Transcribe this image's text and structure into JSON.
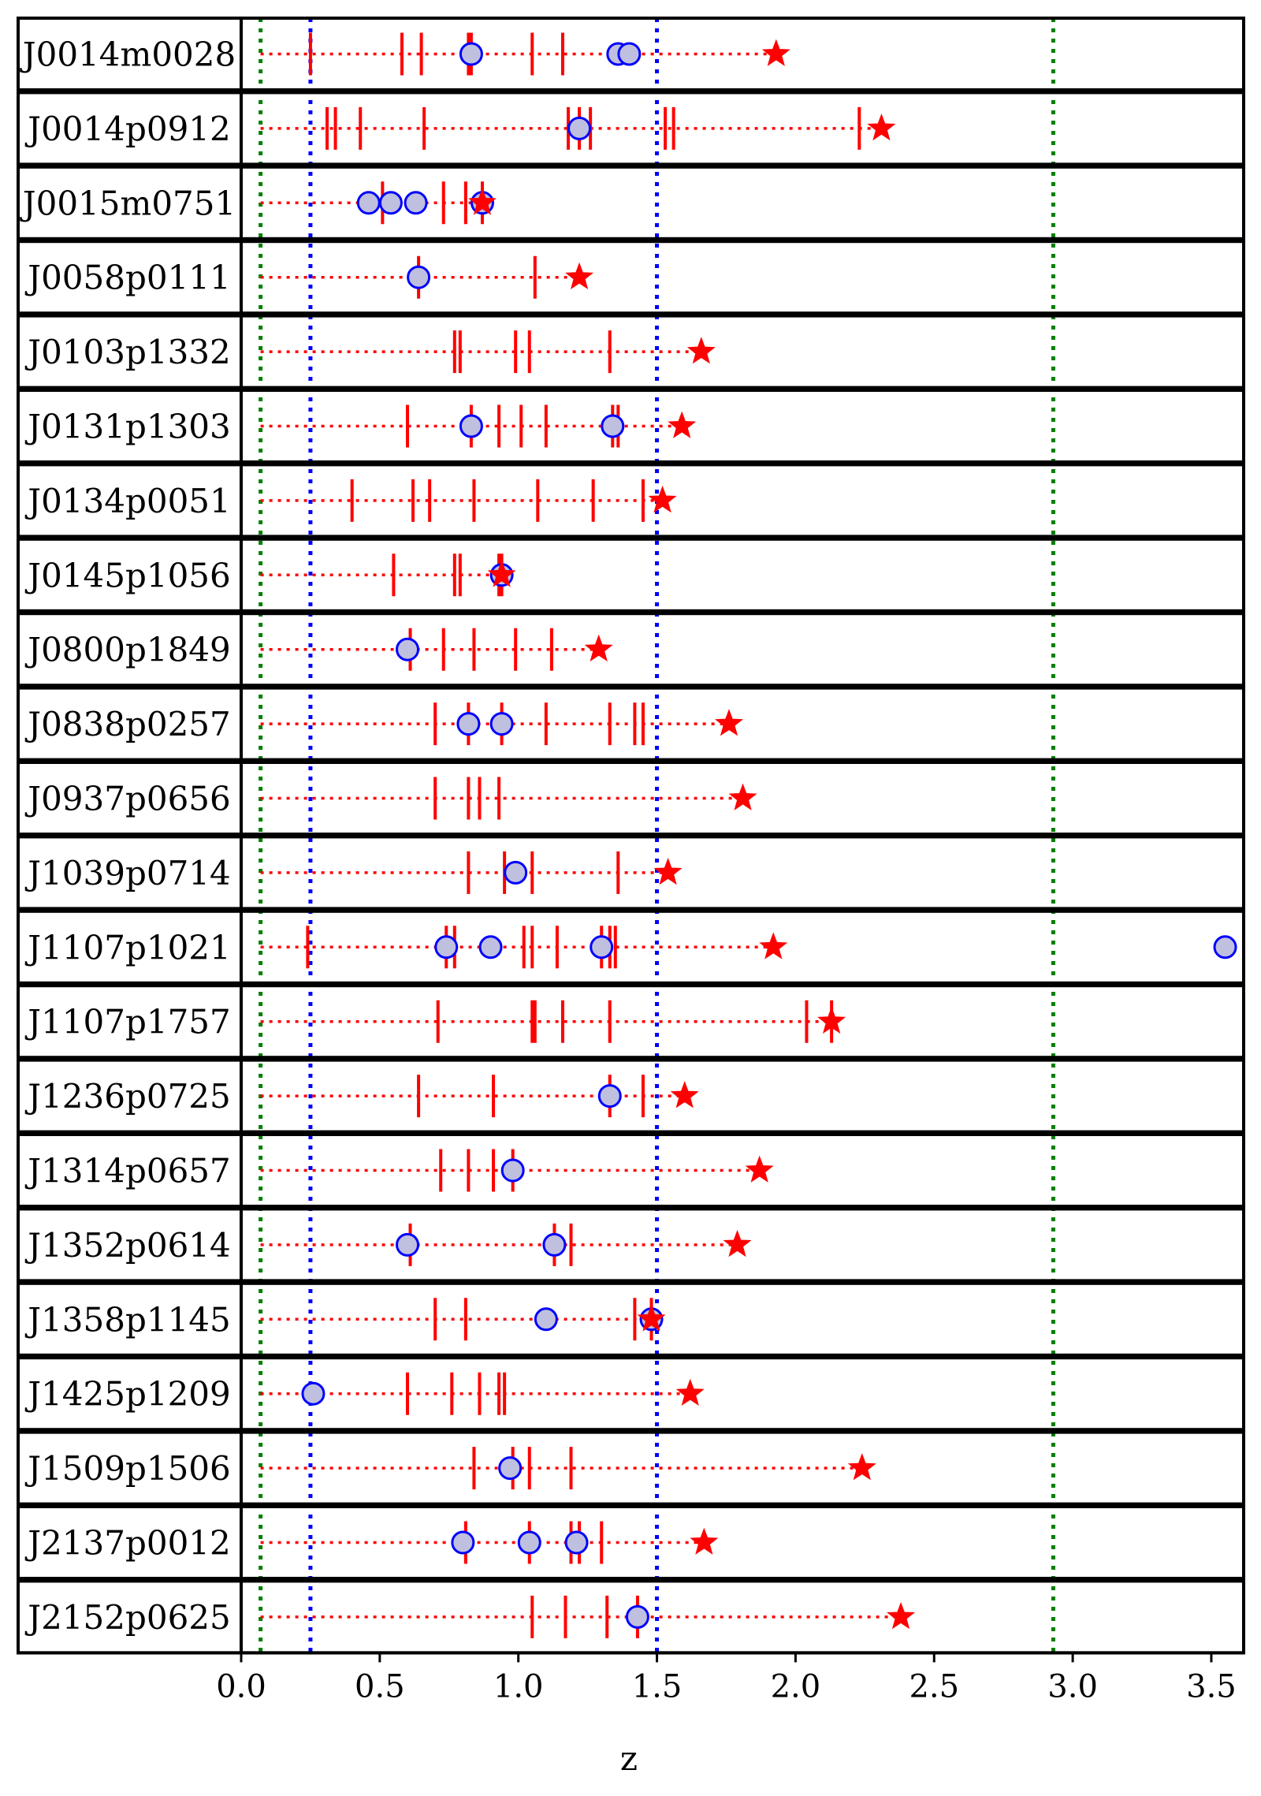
{
  "chart_data": {
    "type": "scatter",
    "title": "",
    "xlabel": "z",
    "ylabel": "",
    "xlim": [
      0.0,
      3.6
    ],
    "xticks": [
      "0.0",
      "0.5",
      "1.0",
      "1.5",
      "2.0",
      "2.5",
      "3.0",
      "3.5"
    ],
    "grid": false,
    "legend": "none",
    "colors": {
      "lines": "#ff0000",
      "stars": "#ff0000",
      "circle_edge": "#0000ff",
      "circle_fill": "#bfbfdf",
      "blue_bounds": "#0000ff",
      "green_bounds": "#008000",
      "frame": "#000000"
    },
    "vertical_lines": {
      "green": [
        0.07,
        2.93
      ],
      "blue": [
        0.25,
        1.5
      ]
    },
    "sightlines": [
      {
        "name": "J0014m0028",
        "qso_z": 1.93,
        "absorbers": [
          0.25,
          0.58,
          0.65,
          0.82,
          0.83,
          1.05,
          1.16
        ],
        "circles": [
          0.83,
          1.36,
          1.4
        ]
      },
      {
        "name": "J0014p0912",
        "qso_z": 2.31,
        "absorbers": [
          0.31,
          0.34,
          0.43,
          0.66,
          1.18,
          1.22,
          1.26,
          1.53,
          1.56,
          2.23
        ],
        "circles": [
          1.22
        ]
      },
      {
        "name": "J0015m0751",
        "qso_z": 0.87,
        "absorbers": [
          0.51,
          0.73,
          0.81,
          0.87
        ],
        "circles": [
          0.46,
          0.54,
          0.63,
          0.87
        ]
      },
      {
        "name": "J0058p0111",
        "qso_z": 1.22,
        "absorbers": [
          0.64,
          1.06
        ],
        "circles": [
          0.64
        ]
      },
      {
        "name": "J0103p1332",
        "qso_z": 1.66,
        "absorbers": [
          0.77,
          0.79,
          0.99,
          1.04,
          1.33
        ],
        "circles": []
      },
      {
        "name": "J0131p1303",
        "qso_z": 1.59,
        "absorbers": [
          0.6,
          0.83,
          0.93,
          1.01,
          1.1,
          1.34,
          1.36
        ],
        "circles": [
          0.83,
          1.34
        ]
      },
      {
        "name": "J0134p0051",
        "qso_z": 1.52,
        "absorbers": [
          0.4,
          0.62,
          0.68,
          0.84,
          1.07,
          1.27,
          1.45
        ],
        "circles": []
      },
      {
        "name": "J0145p1056",
        "qso_z": 0.94,
        "absorbers": [
          0.55,
          0.77,
          0.79,
          0.93,
          0.94
        ],
        "circles": [
          0.94
        ]
      },
      {
        "name": "J0800p1849",
        "qso_z": 1.29,
        "absorbers": [
          0.61,
          0.73,
          0.84,
          0.99,
          1.12
        ],
        "circles": [
          0.6
        ]
      },
      {
        "name": "J0838p0257",
        "qso_z": 1.76,
        "absorbers": [
          0.7,
          0.82,
          0.94,
          1.1,
          1.33,
          1.42,
          1.45
        ],
        "circles": [
          0.82,
          0.94
        ]
      },
      {
        "name": "J0937p0656",
        "qso_z": 1.81,
        "absorbers": [
          0.7,
          0.82,
          0.86,
          0.93
        ],
        "circles": []
      },
      {
        "name": "J1039p0714",
        "qso_z": 1.54,
        "absorbers": [
          0.82,
          0.95,
          1.05,
          1.36
        ],
        "circles": [
          0.99
        ]
      },
      {
        "name": "J1107p1021",
        "qso_z": 1.92,
        "absorbers": [
          0.24,
          0.74,
          0.77,
          1.02,
          1.05,
          1.14,
          1.3,
          1.33,
          1.35
        ],
        "circles": [
          0.74,
          0.9,
          1.3,
          3.55
        ]
      },
      {
        "name": "J1107p1757",
        "qso_z": 2.13,
        "absorbers": [
          0.71,
          1.05,
          1.06,
          1.16,
          1.33,
          2.04,
          2.13
        ],
        "circles": []
      },
      {
        "name": "J1236p0725",
        "qso_z": 1.6,
        "absorbers": [
          0.64,
          0.91,
          1.33,
          1.45
        ],
        "circles": [
          1.33
        ]
      },
      {
        "name": "J1314p0657",
        "qso_z": 1.87,
        "absorbers": [
          0.72,
          0.82,
          0.91,
          0.98
        ],
        "circles": [
          0.98
        ]
      },
      {
        "name": "J1352p0614",
        "qso_z": 1.79,
        "absorbers": [
          0.61,
          1.13,
          1.19
        ],
        "circles": [
          0.6,
          1.13
        ]
      },
      {
        "name": "J1358p1145",
        "qso_z": 1.48,
        "absorbers": [
          0.7,
          0.81,
          1.42,
          1.48
        ],
        "circles": [
          1.1,
          1.48
        ]
      },
      {
        "name": "J1425p1209",
        "qso_z": 1.62,
        "absorbers": [
          0.6,
          0.76,
          0.86,
          0.93,
          0.95
        ],
        "circles": [
          0.26
        ]
      },
      {
        "name": "J1509p1506",
        "qso_z": 2.24,
        "absorbers": [
          0.84,
          0.98,
          1.04,
          1.19
        ],
        "circles": [
          0.97
        ]
      },
      {
        "name": "J2137p0012",
        "qso_z": 1.67,
        "absorbers": [
          0.81,
          1.04,
          1.19,
          1.22,
          1.3
        ],
        "circles": [
          0.8,
          1.04,
          1.21
        ]
      },
      {
        "name": "J2152p0625",
        "qso_z": 2.38,
        "absorbers": [
          1.05,
          1.17,
          1.32,
          1.43
        ],
        "circles": [
          1.43
        ]
      }
    ]
  }
}
